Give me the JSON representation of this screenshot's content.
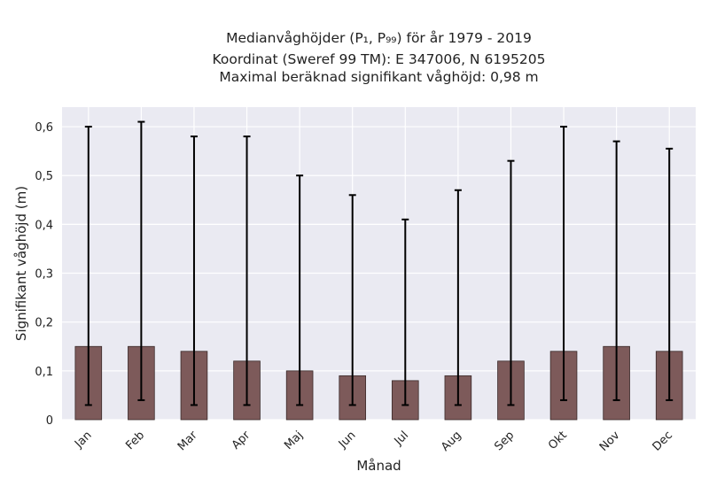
{
  "title_lines": [
    "Medianvåghöjder (P₁, P₉₉) för år 1979 - 2019",
    "Koordinat (Sweref 99 TM): E 347006, N 6195205",
    "Maximal beräknad signifikant våghöjd: 0,98 m"
  ],
  "colors": {
    "plot_background": "#eaeaf2",
    "grid": "#ffffff",
    "bar_fill": "#7d5a5a",
    "bar_edge": "#3a2a2a",
    "error_bar": "#000000",
    "text": "#222222"
  },
  "chart_data": {
    "type": "bar",
    "title": "Medianvåghöjder (P1, P99) för år 1979 - 2019",
    "xlabel": "Månad",
    "ylabel": "Signifikant våghöjd (m)",
    "categories": [
      "Jan",
      "Feb",
      "Mar",
      "Apr",
      "Maj",
      "Jun",
      "Jul",
      "Aug",
      "Sep",
      "Okt",
      "Nov",
      "Dec"
    ],
    "values": [
      0.15,
      0.15,
      0.14,
      0.12,
      0.1,
      0.09,
      0.08,
      0.09,
      0.12,
      0.14,
      0.15,
      0.14
    ],
    "error_low": [
      0.03,
      0.04,
      0.03,
      0.03,
      0.03,
      0.03,
      0.03,
      0.03,
      0.03,
      0.04,
      0.04,
      0.04
    ],
    "error_high": [
      0.6,
      0.61,
      0.58,
      0.58,
      0.5,
      0.46,
      0.41,
      0.47,
      0.53,
      0.6,
      0.57,
      0.555
    ],
    "ylim": [
      0,
      0.64
    ],
    "yticks": [
      0,
      0.1,
      0.2,
      0.3,
      0.4,
      0.5,
      0.6
    ],
    "ytick_labels": [
      "0",
      "0,1",
      "0,2",
      "0,3",
      "0,4",
      "0,5",
      "0,6"
    ],
    "grid": true,
    "legend": "none"
  }
}
